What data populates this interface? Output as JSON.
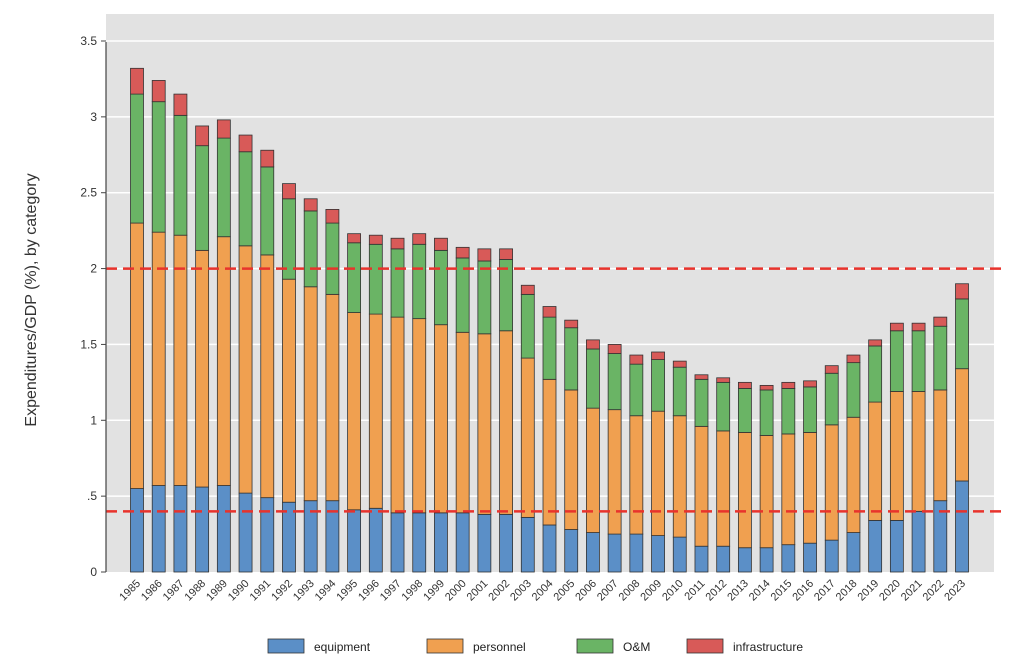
{
  "chart_data": {
    "type": "bar",
    "stacked": true,
    "title": "",
    "xlabel": "",
    "ylabel": "Expenditures/GDP (%), by category",
    "ylim": [
      0,
      3.5
    ],
    "yticks": [
      0,
      0.5,
      1,
      1.5,
      2,
      2.5,
      3,
      3.5
    ],
    "ytick_labels": [
      "0",
      ".5",
      "1",
      "1.5",
      "2",
      "2.5",
      "3",
      "3.5"
    ],
    "grid": true,
    "legend_position": "bottom",
    "reference_lines": [
      {
        "y": 2,
        "color": "#e8332c",
        "style": "dashed"
      },
      {
        "y": 0.4,
        "color": "#e8332c",
        "style": "dashed"
      }
    ],
    "categories": [
      "1985",
      "1986",
      "1987",
      "1988",
      "1989",
      "1990",
      "1991",
      "1992",
      "1993",
      "1994",
      "1995",
      "1996",
      "1997",
      "1998",
      "1999",
      "2000",
      "2001",
      "2002",
      "2003",
      "2004",
      "2005",
      "2006",
      "2007",
      "2008",
      "2009",
      "2010",
      "2011",
      "2012",
      "2013",
      "2014",
      "2015",
      "2016",
      "2017",
      "2018",
      "2019",
      "2020",
      "2021",
      "2022",
      "2023"
    ],
    "series": [
      {
        "name": "equipment",
        "color": "#5b8fc7",
        "values": [
          0.55,
          0.57,
          0.57,
          0.56,
          0.57,
          0.52,
          0.49,
          0.46,
          0.47,
          0.47,
          0.41,
          0.42,
          0.39,
          0.39,
          0.39,
          0.39,
          0.38,
          0.38,
          0.36,
          0.31,
          0.28,
          0.26,
          0.25,
          0.25,
          0.24,
          0.23,
          0.17,
          0.17,
          0.16,
          0.16,
          0.18,
          0.19,
          0.21,
          0.26,
          0.34,
          0.34,
          0.4,
          0.47,
          0.6
        ]
      },
      {
        "name": "personnel",
        "color": "#f0a050",
        "values": [
          1.75,
          1.67,
          1.65,
          1.56,
          1.64,
          1.63,
          1.6,
          1.47,
          1.41,
          1.36,
          1.3,
          1.28,
          1.29,
          1.28,
          1.24,
          1.19,
          1.19,
          1.21,
          1.05,
          0.96,
          0.92,
          0.82,
          0.82,
          0.78,
          0.82,
          0.8,
          0.79,
          0.76,
          0.76,
          0.74,
          0.73,
          0.73,
          0.76,
          0.76,
          0.78,
          0.85,
          0.79,
          0.73,
          0.74
        ]
      },
      {
        "name": "O&M",
        "color": "#6ab465",
        "values": [
          0.85,
          0.86,
          0.79,
          0.69,
          0.65,
          0.62,
          0.58,
          0.53,
          0.5,
          0.47,
          0.46,
          0.46,
          0.45,
          0.49,
          0.49,
          0.49,
          0.48,
          0.47,
          0.42,
          0.41,
          0.41,
          0.39,
          0.37,
          0.34,
          0.34,
          0.32,
          0.31,
          0.32,
          0.29,
          0.3,
          0.3,
          0.3,
          0.34,
          0.36,
          0.37,
          0.4,
          0.4,
          0.42,
          0.46
        ]
      },
      {
        "name": "infrastructure",
        "color": "#d85a58",
        "values": [
          0.17,
          0.14,
          0.14,
          0.13,
          0.12,
          0.11,
          0.11,
          0.1,
          0.08,
          0.09,
          0.06,
          0.06,
          0.07,
          0.07,
          0.08,
          0.07,
          0.08,
          0.07,
          0.06,
          0.07,
          0.05,
          0.06,
          0.06,
          0.06,
          0.05,
          0.04,
          0.03,
          0.03,
          0.04,
          0.03,
          0.04,
          0.04,
          0.05,
          0.05,
          0.04,
          0.05,
          0.05,
          0.06,
          0.1
        ]
      }
    ]
  }
}
